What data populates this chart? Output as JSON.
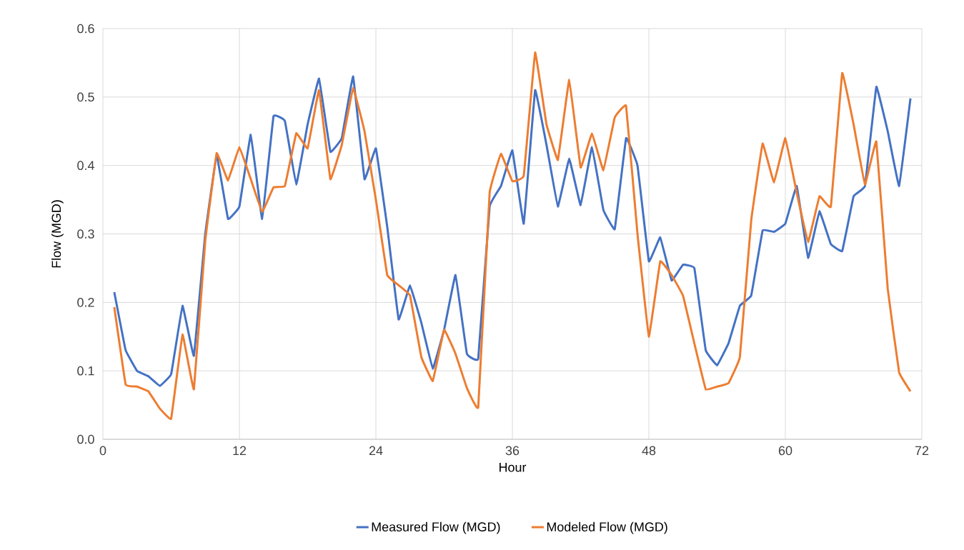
{
  "chart_data": {
    "type": "line",
    "xlabel": "Hour",
    "ylabel": "Flow (MGD)",
    "x": [
      1,
      2,
      3,
      4,
      5,
      6,
      7,
      8,
      9,
      10,
      11,
      12,
      13,
      14,
      15,
      16,
      17,
      18,
      19,
      20,
      21,
      22,
      23,
      24,
      25,
      26,
      27,
      28,
      29,
      30,
      31,
      32,
      33,
      34,
      35,
      36,
      37,
      38,
      39,
      40,
      41,
      42,
      43,
      44,
      45,
      46,
      47,
      48,
      49,
      50,
      51,
      52,
      53,
      54,
      55,
      56,
      57,
      58,
      59,
      60,
      61,
      62,
      63,
      64,
      65,
      66,
      67,
      68,
      69,
      70,
      71
    ],
    "series": [
      {
        "name": "Measured Flow (MGD)",
        "color": "#4472c4",
        "values": [
          0.215,
          0.13,
          0.1,
          0.092,
          0.078,
          0.095,
          0.195,
          0.122,
          0.3,
          0.415,
          0.322,
          0.34,
          0.445,
          0.322,
          0.472,
          0.465,
          0.372,
          0.46,
          0.527,
          0.42,
          0.44,
          0.53,
          0.38,
          0.425,
          0.31,
          0.175,
          0.225,
          0.17,
          0.103,
          0.16,
          0.24,
          0.125,
          0.118,
          0.34,
          0.37,
          0.422,
          0.315,
          0.51,
          0.43,
          0.34,
          0.41,
          0.342,
          0.427,
          0.335,
          0.307,
          0.44,
          0.4,
          0.26,
          0.295,
          0.232,
          0.255,
          0.25,
          0.13,
          0.108,
          0.14,
          0.195,
          0.21,
          0.305,
          0.303,
          0.315,
          0.37,
          0.265,
          0.333,
          0.285,
          0.275,
          0.355,
          0.37,
          0.515,
          0.45,
          0.37,
          0.498
        ]
      },
      {
        "name": "Modeled Flow (MGD)",
        "color": "#ed7d31",
        "values": [
          0.193,
          0.08,
          0.077,
          0.07,
          0.045,
          0.03,
          0.153,
          0.073,
          0.29,
          0.418,
          0.378,
          0.427,
          0.38,
          0.332,
          0.368,
          0.37,
          0.447,
          0.425,
          0.51,
          0.38,
          0.43,
          0.513,
          0.45,
          0.35,
          0.24,
          0.225,
          0.21,
          0.12,
          0.085,
          0.16,
          0.125,
          0.075,
          0.047,
          0.36,
          0.417,
          0.377,
          0.385,
          0.565,
          0.46,
          0.408,
          0.525,
          0.397,
          0.447,
          0.393,
          0.47,
          0.487,
          0.3,
          0.15,
          0.26,
          0.24,
          0.21,
          0.14,
          0.073,
          0.077,
          0.082,
          0.12,
          0.32,
          0.432,
          0.375,
          0.44,
          0.36,
          0.288,
          0.355,
          0.34,
          0.535,
          0.46,
          0.372,
          0.435,
          0.22,
          0.098,
          0.07
        ]
      }
    ],
    "xlim": [
      0,
      72
    ],
    "xticks": [
      0,
      12,
      24,
      36,
      48,
      60,
      72
    ],
    "ylim": [
      0,
      0.6
    ],
    "yticks": [
      {
        "value": 0,
        "label": "0.0"
      },
      0.1,
      0.2,
      0.3,
      0.4,
      0.5,
      0.6
    ],
    "grid": true,
    "legend": "bottom",
    "marker": "none",
    "line_style": "solid"
  }
}
